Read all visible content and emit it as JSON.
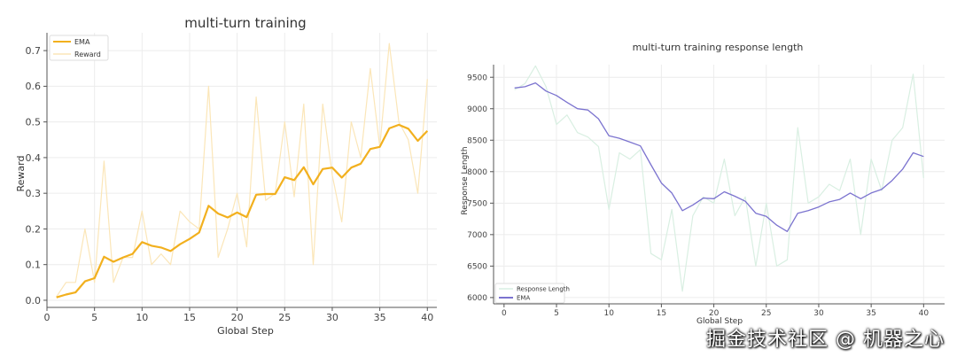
{
  "chart_data": [
    {
      "type": "line",
      "title": "multi-turn training",
      "xlabel": "Global Step",
      "ylabel": "Reward",
      "xlim": [
        0,
        41
      ],
      "ylim": [
        -0.02,
        0.75
      ],
      "xticks": [
        0,
        5,
        10,
        15,
        20,
        25,
        30,
        35,
        40
      ],
      "yticks": [
        0.0,
        0.1,
        0.2,
        0.3,
        0.4,
        0.5,
        0.6,
        0.7
      ],
      "ytick_labels": [
        "0.0",
        "0.1",
        "0.2",
        "0.3",
        "0.4",
        "0.5",
        "0.6",
        "0.7"
      ],
      "grid": true,
      "legend_position": "top-left",
      "x": [
        1,
        2,
        3,
        4,
        5,
        6,
        7,
        8,
        9,
        10,
        11,
        12,
        13,
        14,
        15,
        16,
        17,
        18,
        19,
        20,
        21,
        22,
        23,
        24,
        25,
        26,
        27,
        28,
        29,
        30,
        31,
        32,
        33,
        34,
        35,
        36,
        37,
        38,
        39,
        40
      ],
      "series": [
        {
          "name": "EMA",
          "color": "#f2b01e",
          "faint": false,
          "values": [
            0.008,
            0.016,
            0.022,
            0.053,
            0.062,
            0.122,
            0.108,
            0.12,
            0.13,
            0.163,
            0.153,
            0.148,
            0.138,
            0.157,
            0.172,
            0.19,
            0.265,
            0.243,
            0.232,
            0.246,
            0.233,
            0.296,
            0.298,
            0.298,
            0.345,
            0.337,
            0.373,
            0.325,
            0.368,
            0.372,
            0.344,
            0.372,
            0.383,
            0.424,
            0.43,
            0.482,
            0.492,
            0.481,
            0.447,
            0.475
          ]
        },
        {
          "name": "Reward",
          "color": "#fbe6b8",
          "faint": true,
          "values": [
            0.01,
            0.05,
            0.05,
            0.2,
            0.05,
            0.39,
            0.05,
            0.12,
            0.12,
            0.25,
            0.1,
            0.13,
            0.1,
            0.25,
            0.22,
            0.2,
            0.6,
            0.12,
            0.2,
            0.3,
            0.15,
            0.57,
            0.28,
            0.3,
            0.5,
            0.29,
            0.55,
            0.1,
            0.55,
            0.35,
            0.22,
            0.5,
            0.4,
            0.65,
            0.43,
            0.72,
            0.5,
            0.45,
            0.3,
            0.62
          ]
        }
      ]
    },
    {
      "type": "line",
      "title": "multi-turn training response length",
      "xlabel": "Global Step",
      "ylabel": "Response Length",
      "xlim": [
        -1,
        42
      ],
      "ylim": [
        5900,
        9700
      ],
      "xticks": [
        0,
        5,
        10,
        15,
        20,
        25,
        30,
        35,
        40
      ],
      "yticks": [
        6000,
        6500,
        7000,
        7500,
        8000,
        8500,
        9000,
        9500
      ],
      "ytick_labels": [
        "6000",
        "6500",
        "7000",
        "7500",
        "8000",
        "8500",
        "9000",
        "9500"
      ],
      "grid": true,
      "legend_position": "bottom-left",
      "x": [
        1,
        2,
        3,
        4,
        5,
        6,
        7,
        8,
        9,
        10,
        11,
        12,
        13,
        14,
        15,
        16,
        17,
        18,
        19,
        20,
        21,
        22,
        23,
        24,
        25,
        26,
        27,
        28,
        29,
        30,
        31,
        32,
        33,
        34,
        35,
        36,
        37,
        38,
        39,
        40
      ],
      "series": [
        {
          "name": "Response Length",
          "color": "#d9efe2",
          "faint": true,
          "values": [
            9300,
            9400,
            9680,
            9350,
            8750,
            8900,
            8620,
            8550,
            8400,
            7400,
            8300,
            8200,
            8350,
            6700,
            6600,
            7400,
            6100,
            7300,
            7600,
            7500,
            8200,
            7300,
            7600,
            6500,
            7500,
            6500,
            6600,
            8700,
            7500,
            7600,
            7800,
            7700,
            8200,
            7000,
            8200,
            7700,
            8500,
            8700,
            9550,
            7900
          ]
        },
        {
          "name": "EMA",
          "color": "#7b73cf",
          "faint": false,
          "values": [
            9330,
            9350,
            9410,
            9280,
            9210,
            9100,
            9000,
            8980,
            8840,
            8570,
            8530,
            8470,
            8410,
            8110,
            7820,
            7660,
            7380,
            7470,
            7580,
            7570,
            7680,
            7610,
            7530,
            7340,
            7290,
            7150,
            7050,
            7340,
            7380,
            7440,
            7520,
            7560,
            7660,
            7570,
            7660,
            7720,
            7860,
            8040,
            8300,
            8240
          ]
        }
      ]
    }
  ],
  "watermark": "掘金技术社区 @ 机器之心"
}
